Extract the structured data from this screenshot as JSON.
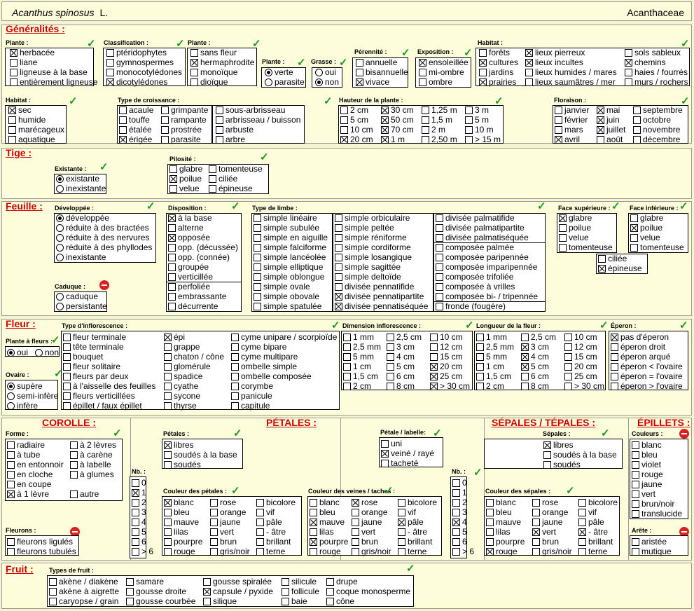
{
  "header": {
    "species": "Acanthus spinosus",
    "author": "L.",
    "family": "Acanthaceae"
  },
  "sections": {
    "generalites": "Généralités :",
    "tige": "Tige :",
    "feuille": "Feuille :",
    "fleur": "Fleur :",
    "corolle": "COROLLE :",
    "petales": "PÉTALES :",
    "sepales": "SÉPALES / TÉPALES :",
    "epillets": "ÉPILLETS :",
    "fruit": "Fruit :"
  },
  "labels": {
    "plante1": "Plante :",
    "classification": "Classification :",
    "plante2": "Plante :",
    "plante3": "Plante :",
    "grasse": "Grasse :",
    "perennite": "Pérennité :",
    "exposition": "Exposition :",
    "habitat1": "Habitat :",
    "habitat2": "Habitat :",
    "croissance": "Type de croissance :",
    "hauteur": "Hauteur de la plante :",
    "floraison": "Floraison :",
    "existante": "Existante :",
    "pilosite": "Pilosité :",
    "developpee": "Développée :",
    "disposition": "Disposition :",
    "limbe": "Type de limbe :",
    "facesup": "Face supérieure :",
    "faceinf": "Face inférieure :",
    "caduque": "Caduque :",
    "inflorescence": "Type d'inflorescence :",
    "diminfl": "Dimension inflorescence :",
    "longfleur": "Longueur de la fleur :",
    "eperon": "Éperon :",
    "plantefleurs": "Plante à fleurs :",
    "ovaire": "Ovaire :",
    "forme": "Forme :",
    "fleurons": "Fleurons :",
    "petales": "Pétales :",
    "petalelabelle": "Pétale / labelle:",
    "nb1": "Nb. :",
    "coulpetales": "Couleur des pétales :",
    "coulveines": "Couleur des veines / taches :",
    "sepales": "Sépales :",
    "nb2": "Nb. :",
    "coulsepales": "Couleur des sépales :",
    "couleurs": "Couleurs :",
    "arete": "Arête :",
    "typesfruit": "Types de fruit :"
  },
  "items": [
    [
      "herbacée",
      1
    ],
    [
      "liane",
      0
    ],
    [
      "ligneuse à la base",
      0
    ],
    [
      "entièrement ligneuse",
      0
    ],
    [
      "ptéridophytes",
      0
    ],
    [
      "gymnospermes",
      0
    ],
    [
      "monocotylédones",
      0
    ],
    [
      "dicotylédones",
      1
    ],
    [
      "sans fleur",
      0
    ],
    [
      "hermaphrodite",
      1
    ],
    [
      "monoïque",
      0
    ],
    [
      "dioïque",
      0
    ],
    [
      "verte",
      1
    ],
    [
      "parasite",
      0
    ],
    [
      "oui",
      0
    ],
    [
      "non",
      1
    ],
    [
      "annuelle",
      0
    ],
    [
      "bisannuelle",
      0
    ],
    [
      "vivace",
      1
    ],
    [
      "ensoleillée",
      1
    ],
    [
      "mi-ombre",
      0
    ],
    [
      "ombre",
      0
    ],
    [
      "forêts",
      0
    ],
    [
      "cultures",
      1
    ],
    [
      "jardins",
      0
    ],
    [
      "prairies",
      1
    ],
    [
      "lieux pierreux",
      1
    ],
    [
      "lieux incultes",
      1
    ],
    [
      "lieux humides / mares",
      0
    ],
    [
      "lieux saumâtres / mer",
      0
    ],
    [
      "sols sableux",
      0
    ],
    [
      "chemins",
      1
    ],
    [
      "haies / fourrés",
      0
    ],
    [
      "murs / rochers",
      0
    ],
    [
      "sec",
      1
    ],
    [
      "humide",
      0
    ],
    [
      "marécageux",
      0
    ],
    [
      "aquatique",
      0
    ],
    [
      "acaule",
      0
    ],
    [
      "touffe",
      0
    ],
    [
      "étalée",
      0
    ],
    [
      "érigée",
      1
    ],
    [
      "grimpante",
      0
    ],
    [
      "rampante",
      0
    ],
    [
      "prostrée",
      0
    ],
    [
      "parasite",
      0
    ],
    [
      "sous-arbrisseau",
      0
    ],
    [
      "arbrisseau / buisson",
      0
    ],
    [
      "arbuste",
      0
    ],
    [
      "arbre",
      0
    ],
    [
      "2 cm",
      0
    ],
    [
      "5 cm",
      0
    ],
    [
      "10 cm",
      0
    ],
    [
      "20 cm",
      1
    ],
    [
      "30 cm",
      1
    ],
    [
      "50 cm",
      1
    ],
    [
      "70 cm",
      1
    ],
    [
      "1 m",
      1
    ],
    [
      "1,25 m",
      0
    ],
    [
      "1,5 m",
      0
    ],
    [
      "2 m",
      0
    ],
    [
      "2,50 m",
      0
    ],
    [
      "3 m",
      0
    ],
    [
      "5 m",
      0
    ],
    [
      "10 m",
      0
    ],
    [
      "> 15 m",
      0
    ],
    [
      "janvier",
      0
    ],
    [
      "février",
      0
    ],
    [
      "mars",
      0
    ],
    [
      "avril",
      1
    ],
    [
      "mai",
      1
    ],
    [
      "juin",
      1
    ],
    [
      "juillet",
      1
    ],
    [
      "août",
      0
    ],
    [
      "septembre",
      0
    ],
    [
      "octobre",
      0
    ],
    [
      "novembre",
      0
    ],
    [
      "décembre",
      0
    ],
    [
      "existante",
      1
    ],
    [
      "inexistante",
      0
    ],
    [
      "glabre",
      0
    ],
    [
      "poilue",
      1
    ],
    [
      "velue",
      0
    ],
    [
      "tomenteuse",
      0
    ],
    [
      "ciliée",
      0
    ],
    [
      "épineuse",
      0
    ],
    [
      "développée",
      1
    ],
    [
      "réduite à des bractées",
      0
    ],
    [
      "réduite à des nervures",
      0
    ],
    [
      "réduite à des phyllodes",
      0
    ],
    [
      "inexistante",
      0
    ],
    [
      "caduque",
      0
    ],
    [
      "persistante",
      0
    ],
    [
      "à la base",
      1
    ],
    [
      "alterne",
      0
    ],
    [
      "opposée",
      1
    ],
    [
      "opp. (décussée)",
      0
    ],
    [
      "opp. (connée)",
      0
    ],
    [
      "groupée",
      0
    ],
    [
      "verticillée",
      0
    ],
    [
      "perfoliée",
      0
    ],
    [
      "embrassante",
      0
    ],
    [
      "décurrente",
      0
    ],
    [
      "simple linéaire",
      0
    ],
    [
      "simple subulée",
      0
    ],
    [
      "simple en aiguille",
      0
    ],
    [
      "simple falciforme",
      0
    ],
    [
      "simple lancéolée",
      0
    ],
    [
      "simple elliptique",
      0
    ],
    [
      "simple oblongue",
      0
    ],
    [
      "simple ovale",
      0
    ],
    [
      "simple obovale",
      0
    ],
    [
      "simple spatulée",
      0
    ],
    [
      "simple orbiculaire",
      0
    ],
    [
      "simple peltée",
      0
    ],
    [
      "simple réniforme",
      0
    ],
    [
      "simple cordiforme",
      0
    ],
    [
      "simple losangique",
      0
    ],
    [
      "simple sagittée",
      0
    ],
    [
      "simple deltoïde",
      0
    ],
    [
      "divisée pennatifide",
      0
    ],
    [
      "divisée pennatipartite",
      1
    ],
    [
      "divisée pennatiséquée",
      1
    ],
    [
      "divisée palmatifide",
      0
    ],
    [
      "divisée palmatipartite",
      0
    ],
    [
      "divisée palmatiséquée",
      0
    ],
    [
      "composée palmée",
      0
    ],
    [
      "composée paripennée",
      0
    ],
    [
      "composée imparipennée",
      0
    ],
    [
      "composée trifoliée",
      0
    ],
    [
      "composée à vrilles",
      0
    ],
    [
      "composée bi- / tripennée",
      0
    ],
    [
      "fronde (fougère)",
      0
    ],
    [
      "glabre",
      1
    ],
    [
      "poilue",
      0
    ],
    [
      "velue",
      0
    ],
    [
      "tomenteuse",
      0
    ],
    [
      "ciliée",
      0
    ],
    [
      "épineuse",
      1
    ],
    [
      "glabre",
      0
    ],
    [
      "poilue",
      1
    ],
    [
      "velue",
      0
    ],
    [
      "tomenteuse",
      0
    ],
    [
      "oui",
      1
    ],
    [
      "non",
      0
    ],
    [
      "supère",
      1
    ],
    [
      "semi-infère",
      0
    ],
    [
      "infère",
      0
    ],
    [
      "fleur terminale",
      0
    ],
    [
      "tête terminale",
      0
    ],
    [
      "bouquet",
      0
    ],
    [
      "fleur solitaire",
      0
    ],
    [
      "fleurs par deux",
      0
    ],
    [
      "à l'aisselle des feuilles",
      0
    ],
    [
      "fleurs verticillées",
      0
    ],
    [
      "épillet / faux épillet",
      0
    ],
    [
      "épi",
      1
    ],
    [
      "grappe",
      0
    ],
    [
      "chaton / cône",
      0
    ],
    [
      "glomérule",
      0
    ],
    [
      "spadice",
      0
    ],
    [
      "cyathe",
      0
    ],
    [
      "sycone",
      0
    ],
    [
      "thyrse",
      0
    ],
    [
      "cyme unipare / scorpioïde",
      0
    ],
    [
      "cyme bipare",
      0
    ],
    [
      "cyme multipare",
      0
    ],
    [
      "ombelle simple",
      0
    ],
    [
      "ombelle composée",
      0
    ],
    [
      "corymbe",
      0
    ],
    [
      "panicule",
      0
    ],
    [
      "capitule",
      0
    ],
    [
      "1 mm",
      0
    ],
    [
      "2,5 mm",
      0
    ],
    [
      "5 mm",
      0
    ],
    [
      "1 cm",
      0
    ],
    [
      "1,5 cm",
      0
    ],
    [
      "2 cm",
      0
    ],
    [
      "2,5 cm",
      0
    ],
    [
      "3 cm",
      0
    ],
    [
      "4 cm",
      0
    ],
    [
      "5 cm",
      0
    ],
    [
      "6 cm",
      0
    ],
    [
      "8 cm",
      0
    ],
    [
      "10 cm",
      0
    ],
    [
      "12 cm",
      0
    ],
    [
      "15 cm",
      0
    ],
    [
      "20 cm",
      1
    ],
    [
      "25 cm",
      1
    ],
    [
      "> 30 cm",
      1
    ],
    [
      "1 mm",
      0
    ],
    [
      "2,5 mm",
      0
    ],
    [
      "5 mm",
      0
    ],
    [
      "1 cm",
      0
    ],
    [
      "1,5 cm",
      0
    ],
    [
      "2 cm",
      0
    ],
    [
      "2,5 cm",
      0
    ],
    [
      "3 cm",
      1
    ],
    [
      "4 cm",
      1
    ],
    [
      "5 cm",
      1
    ],
    [
      "6 cm",
      0
    ],
    [
      "8 cm",
      0
    ],
    [
      "10 cm",
      0
    ],
    [
      "12 cm",
      0
    ],
    [
      "15 cm",
      0
    ],
    [
      "20 cm",
      0
    ],
    [
      "25 cm",
      0
    ],
    [
      "> 30 cm",
      0
    ],
    [
      "pas d'éperon",
      1
    ],
    [
      "éperon droit",
      0
    ],
    [
      "éperon arqué",
      0
    ],
    [
      "éperon < l'ovaire",
      0
    ],
    [
      "éperon = l'ovaire",
      0
    ],
    [
      "éperon > l'ovaire",
      0
    ],
    [
      "radiaire",
      0
    ],
    [
      "à tube",
      0
    ],
    [
      "en entonnoir",
      0
    ],
    [
      "en cloche",
      0
    ],
    [
      "en coupe",
      0
    ],
    [
      "à 1 lèvre",
      1
    ],
    [
      "à 2 lèvres",
      0
    ],
    [
      "à carène",
      0
    ],
    [
      "à labelle",
      0
    ],
    [
      "à glumes",
      0
    ],
    [
      "autre",
      0
    ],
    [
      "fleurons ligulés",
      0
    ],
    [
      "fleurons tubulés",
      0
    ],
    [
      "libres",
      1
    ],
    [
      "soudés à la base",
      0
    ],
    [
      "soudés",
      0
    ],
    [
      "uni",
      0
    ],
    [
      "veiné / rayé",
      1
    ],
    [
      "tacheté",
      0
    ],
    [
      "0",
      0
    ],
    [
      "1",
      1
    ],
    [
      "2",
      0
    ],
    [
      "3",
      0
    ],
    [
      "4",
      0
    ],
    [
      "5",
      0
    ],
    [
      "6",
      0
    ],
    [
      "> 6",
      0
    ],
    [
      "blanc",
      1
    ],
    [
      "bleu",
      0
    ],
    [
      "mauve",
      0
    ],
    [
      "lilas",
      0
    ],
    [
      "pourpre",
      0
    ],
    [
      "rouge",
      0
    ],
    [
      "rose",
      0
    ],
    [
      "orange",
      0
    ],
    [
      "jaune",
      0
    ],
    [
      "vert",
      0
    ],
    [
      "brun",
      0
    ],
    [
      "gris/noir",
      0
    ],
    [
      "bicolore",
      0
    ],
    [
      "vif",
      0
    ],
    [
      "pâle",
      0
    ],
    [
      "- âtre",
      0
    ],
    [
      "brillant",
      0
    ],
    [
      "terne",
      0
    ],
    [
      "blanc",
      0
    ],
    [
      "bleu",
      0
    ],
    [
      "mauve",
      1
    ],
    [
      "lilas",
      0
    ],
    [
      "pourpre",
      1
    ],
    [
      "rouge",
      0
    ],
    [
      "rose",
      1
    ],
    [
      "orange",
      0
    ],
    [
      "jaune",
      0
    ],
    [
      "vert",
      0
    ],
    [
      "brun",
      0
    ],
    [
      "gris/noir",
      0
    ],
    [
      "bicolore",
      0
    ],
    [
      "vif",
      0
    ],
    [
      "pâle",
      1
    ],
    [
      "- âtre",
      0
    ],
    [
      "brillant",
      0
    ],
    [
      "terne",
      0
    ],
    [
      "libres",
      1
    ],
    [
      "soudés à la base",
      0
    ],
    [
      "soudés",
      0
    ],
    [
      "0",
      0
    ],
    [
      "1",
      0
    ],
    [
      "2",
      0
    ],
    [
      "3",
      0
    ],
    [
      "4",
      1
    ],
    [
      "5",
      0
    ],
    [
      "6",
      0
    ],
    [
      "> 6",
      0
    ],
    [
      "blanc",
      0
    ],
    [
      "bleu",
      0
    ],
    [
      "mauve",
      0
    ],
    [
      "lilas",
      0
    ],
    [
      "pourpre",
      0
    ],
    [
      "rouge",
      1
    ],
    [
      "rose",
      0
    ],
    [
      "orange",
      0
    ],
    [
      "jaune",
      0
    ],
    [
      "vert",
      1
    ],
    [
      "brun",
      0
    ],
    [
      "gris/noir",
      0
    ],
    [
      "bicolore",
      0
    ],
    [
      "vif",
      0
    ],
    [
      "pâle",
      0
    ],
    [
      "- âtre",
      1
    ],
    [
      "brillant",
      0
    ],
    [
      "terne",
      0
    ],
    [
      "blanc",
      0
    ],
    [
      "bleu",
      0
    ],
    [
      "violet",
      0
    ],
    [
      "rouge",
      0
    ],
    [
      "jaune",
      0
    ],
    [
      "vert",
      0
    ],
    [
      "brun/noir",
      0
    ],
    [
      "translucide",
      0
    ],
    [
      "aristée",
      0
    ],
    [
      "mutique",
      0
    ],
    [
      "akène / diakène",
      0
    ],
    [
      "akène à aigrette",
      0
    ],
    [
      "caryopse / grain",
      0
    ],
    [
      "samare",
      0
    ],
    [
      "gousse droite",
      0
    ],
    [
      "gousse courbée",
      0
    ],
    [
      "gousse spiralée",
      0
    ],
    [
      "capsule / pyxide",
      1
    ],
    [
      "silique",
      0
    ],
    [
      "silicule",
      0
    ],
    [
      "follicule",
      0
    ],
    [
      "baie",
      0
    ],
    [
      "drupe",
      0
    ],
    [
      "coque monosperme",
      0
    ],
    [
      "cône",
      0
    ]
  ],
  "status_marks": {
    "check_glyph": "✓",
    "check_color": "#1a9a1a",
    "forbidden_color": "#d92121"
  }
}
